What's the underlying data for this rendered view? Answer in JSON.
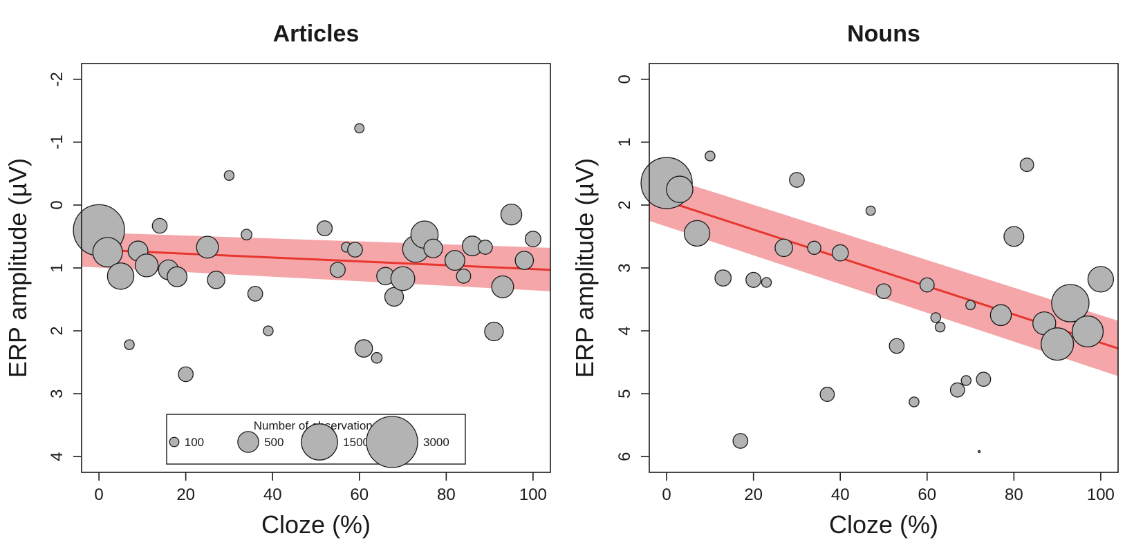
{
  "colors": {
    "bubble_fill": "#b3b3b3",
    "bubble_stroke": "#1a1a1a",
    "ci_band": "#f4a6a9",
    "fit_line": "#e8352e"
  },
  "chart_data": [
    {
      "type": "scatter",
      "title": "Articles",
      "xlabel": "Cloze (%)",
      "ylabel": "ERP amplitude (µV)",
      "xlim": [
        -4,
        104
      ],
      "ylim": [
        4.25,
        -2.25
      ],
      "y_reversed": true,
      "xticks": [
        0,
        20,
        40,
        60,
        80,
        100
      ],
      "yticks": [
        -2,
        -1,
        0,
        1,
        2,
        3,
        4
      ],
      "grid": false,
      "fit": {
        "x": [
          -4,
          104
        ],
        "y": [
          0.7,
          1.03
        ],
        "ci_lower": [
          0.43,
          0.68
        ],
        "ci_upper": [
          0.98,
          1.37
        ]
      },
      "legend": {
        "title": "Number of observations",
        "sizes": [
          100,
          500,
          1500,
          3000
        ],
        "labels": [
          "100",
          "500",
          "1500",
          "3000"
        ],
        "placement": "bottom-center"
      },
      "points": [
        {
          "x": 0,
          "y": 0.4,
          "n": 3000
        },
        {
          "x": 2,
          "y": 0.75,
          "n": 1000
        },
        {
          "x": 5,
          "y": 1.13,
          "n": 800
        },
        {
          "x": 7,
          "y": 2.22,
          "n": 110
        },
        {
          "x": 9,
          "y": 0.73,
          "n": 450
        },
        {
          "x": 11,
          "y": 0.96,
          "n": 600
        },
        {
          "x": 14,
          "y": 0.33,
          "n": 250
        },
        {
          "x": 16,
          "y": 1.03,
          "n": 450
        },
        {
          "x": 18,
          "y": 1.14,
          "n": 450
        },
        {
          "x": 20,
          "y": 2.69,
          "n": 250
        },
        {
          "x": 25,
          "y": 0.67,
          "n": 550
        },
        {
          "x": 27,
          "y": 1.19,
          "n": 350
        },
        {
          "x": 30,
          "y": -0.47,
          "n": 110
        },
        {
          "x": 34,
          "y": 0.47,
          "n": 130
        },
        {
          "x": 36,
          "y": 1.41,
          "n": 250
        },
        {
          "x": 39,
          "y": 2.0,
          "n": 110
        },
        {
          "x": 52,
          "y": 0.37,
          "n": 260
        },
        {
          "x": 55,
          "y": 1.03,
          "n": 260
        },
        {
          "x": 57,
          "y": 0.67,
          "n": 110
        },
        {
          "x": 59,
          "y": 0.71,
          "n": 250
        },
        {
          "x": 60,
          "y": -1.22,
          "n": 100
        },
        {
          "x": 61,
          "y": 2.28,
          "n": 350
        },
        {
          "x": 64,
          "y": 2.43,
          "n": 130
        },
        {
          "x": 66,
          "y": 1.13,
          "n": 350
        },
        {
          "x": 68,
          "y": 1.46,
          "n": 400
        },
        {
          "x": 70,
          "y": 1.17,
          "n": 650
        },
        {
          "x": 73,
          "y": 0.7,
          "n": 800
        },
        {
          "x": 75,
          "y": 0.47,
          "n": 850
        },
        {
          "x": 77,
          "y": 0.69,
          "n": 400
        },
        {
          "x": 81,
          "y": 0.84,
          "n": 120
        },
        {
          "x": 82,
          "y": 0.88,
          "n": 450
        },
        {
          "x": 84,
          "y": 1.13,
          "n": 230
        },
        {
          "x": 86,
          "y": 0.65,
          "n": 450
        },
        {
          "x": 89,
          "y": 0.67,
          "n": 230
        },
        {
          "x": 91,
          "y": 2.01,
          "n": 400
        },
        {
          "x": 93,
          "y": 1.3,
          "n": 550
        },
        {
          "x": 95,
          "y": 0.15,
          "n": 500
        },
        {
          "x": 98,
          "y": 0.88,
          "n": 380
        },
        {
          "x": 100,
          "y": 0.54,
          "n": 280
        }
      ]
    },
    {
      "type": "scatter",
      "title": "Nouns",
      "xlabel": "Cloze (%)",
      "ylabel": "ERP amplitude (µV)",
      "xlim": [
        -4,
        104
      ],
      "ylim": [
        6.25,
        -0.25
      ],
      "y_reversed": true,
      "xticks": [
        0,
        20,
        40,
        60,
        80,
        100
      ],
      "yticks": [
        0,
        1,
        2,
        3,
        4,
        5,
        6
      ],
      "grid": false,
      "fit": {
        "x": [
          -4,
          104
        ],
        "y": [
          1.85,
          4.28
        ],
        "ci_lower": [
          1.47,
          3.84
        ],
        "ci_upper": [
          2.25,
          4.72
        ]
      },
      "points": [
        {
          "x": 0,
          "y": 1.65,
          "n": 3000
        },
        {
          "x": 3,
          "y": 1.75,
          "n": 800
        },
        {
          "x": 7,
          "y": 2.45,
          "n": 750
        },
        {
          "x": 10,
          "y": 1.22,
          "n": 110
        },
        {
          "x": 13,
          "y": 3.16,
          "n": 300
        },
        {
          "x": 17,
          "y": 5.75,
          "n": 250
        },
        {
          "x": 20,
          "y": 3.19,
          "n": 260
        },
        {
          "x": 23,
          "y": 3.23,
          "n": 110
        },
        {
          "x": 27,
          "y": 2.68,
          "n": 350
        },
        {
          "x": 30,
          "y": 1.6,
          "n": 250
        },
        {
          "x": 34,
          "y": 2.68,
          "n": 200
        },
        {
          "x": 37,
          "y": 5.01,
          "n": 230
        },
        {
          "x": 40,
          "y": 2.76,
          "n": 300
        },
        {
          "x": 47,
          "y": 2.09,
          "n": 100
        },
        {
          "x": 50,
          "y": 3.37,
          "n": 250
        },
        {
          "x": 53,
          "y": 4.24,
          "n": 250
        },
        {
          "x": 57,
          "y": 5.13,
          "n": 110
        },
        {
          "x": 60,
          "y": 3.27,
          "n": 230
        },
        {
          "x": 62,
          "y": 3.79,
          "n": 110
        },
        {
          "x": 63,
          "y": 3.94,
          "n": 110
        },
        {
          "x": 67,
          "y": 4.94,
          "n": 230
        },
        {
          "x": 69,
          "y": 4.79,
          "n": 110
        },
        {
          "x": 70,
          "y": 3.59,
          "n": 100
        },
        {
          "x": 72,
          "y": 5.92,
          "n": 5
        },
        {
          "x": 73,
          "y": 4.77,
          "n": 230
        },
        {
          "x": 77,
          "y": 3.75,
          "n": 500
        },
        {
          "x": 80,
          "y": 2.5,
          "n": 450
        },
        {
          "x": 83,
          "y": 1.36,
          "n": 210
        },
        {
          "x": 87,
          "y": 3.88,
          "n": 600
        },
        {
          "x": 90,
          "y": 4.21,
          "n": 1200
        },
        {
          "x": 93,
          "y": 3.56,
          "n": 1600
        },
        {
          "x": 97,
          "y": 4.01,
          "n": 1100
        },
        {
          "x": 100,
          "y": 3.18,
          "n": 750
        }
      ]
    }
  ]
}
